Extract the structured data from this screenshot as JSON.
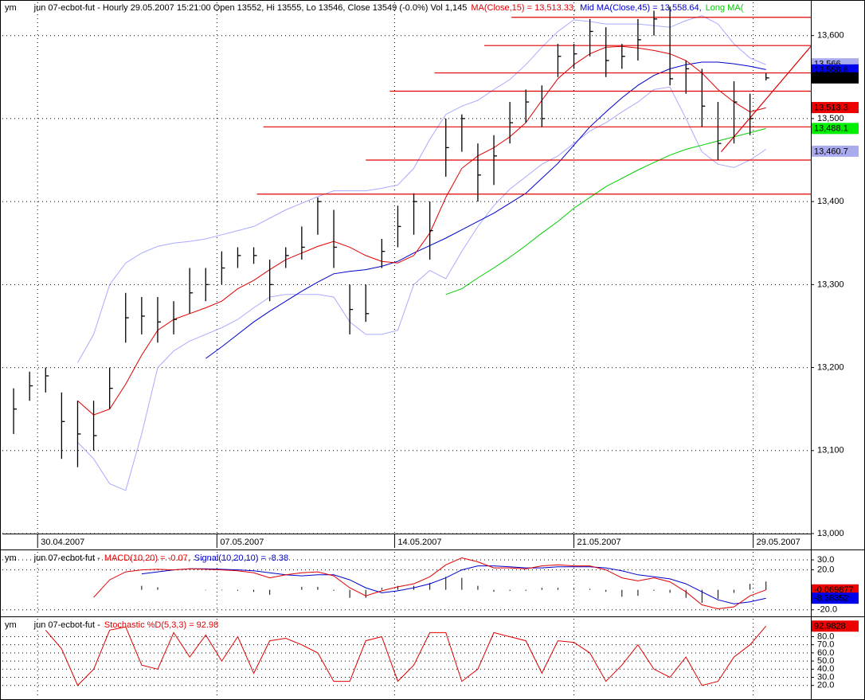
{
  "chart_data": [
    {
      "type": "ohlc",
      "title_parts": [
        {
          "text": "ym",
          "color": "#000000"
        },
        {
          "text": "jun 07-ecbot-fut - Hourly 29.05.2007 15:21:00 Open 13552, Hi 13555, Lo 13546, Close 13549 (-0.0%) Vol 1,145",
          "color": "#000000"
        },
        {
          "text": "MA(Close,15) = 13,513.33,",
          "color": "#e00000"
        },
        {
          "text": "Mid MA(Close,45) = 13,558.64,",
          "color": "#0000cc"
        },
        {
          "text": "Long MA(",
          "color": "#00cc00"
        }
      ],
      "xlim": [
        -0.7,
        49.8
      ],
      "xticks": [
        {
          "value": 1.5,
          "label": "30.04.2007"
        },
        {
          "value": 12.7,
          "label": "07.05.2007"
        },
        {
          "value": 23.8,
          "label": "14.05.2007"
        },
        {
          "value": 35,
          "label": "21.05.2007"
        },
        {
          "value": 46.2,
          "label": "29.05.2007"
        }
      ],
      "ylim": [
        13000,
        13640
      ],
      "yticks": [
        {
          "value": 13000,
          "label": "13,000"
        },
        {
          "value": 13100,
          "label": "13,100"
        },
        {
          "value": 13200,
          "label": "13,200"
        },
        {
          "value": 13300,
          "label": "13,300"
        },
        {
          "value": 13400,
          "label": "13,400"
        },
        {
          "value": 13500,
          "label": "13,500"
        },
        {
          "value": 13600,
          "label": "13,600"
        }
      ],
      "grid": true,
      "bar_color": "#000000",
      "high": [
        13175,
        13195,
        13200,
        13170,
        13160,
        13160,
        13200,
        13290,
        13285,
        13285,
        13280,
        13320,
        13320,
        13340,
        13345,
        13345,
        13330,
        13345,
        13370,
        13405,
        13390,
        13300,
        13300,
        13355,
        13395,
        13410,
        13400,
        13500,
        13505,
        13470,
        13480,
        13520,
        13535,
        13540,
        13590,
        13590,
        13620,
        13610,
        13590,
        13620,
        13630,
        13635,
        13570,
        13560,
        13520,
        13545,
        13530,
        13555
      ],
      "low": [
        13120,
        13160,
        13170,
        13090,
        13080,
        13100,
        13150,
        13230,
        13240,
        13230,
        13240,
        13265,
        13280,
        13300,
        13320,
        13325,
        13280,
        13320,
        13330,
        13360,
        13320,
        13240,
        13255,
        13320,
        13345,
        13360,
        13330,
        13430,
        13460,
        13400,
        13420,
        13470,
        13495,
        13490,
        13550,
        13560,
        13575,
        13550,
        13560,
        13570,
        13600,
        13540,
        13530,
        13490,
        13450,
        13470,
        13480,
        13546
      ],
      "close": [
        13150,
        13178,
        13190,
        13135,
        13120,
        13118,
        13175,
        13260,
        13262,
        13255,
        13258,
        13290,
        13300,
        13320,
        13335,
        13335,
        13300,
        13335,
        13345,
        13400,
        13345,
        13270,
        13265,
        13340,
        13370,
        13400,
        13365,
        13465,
        13500,
        13432,
        13455,
        13495,
        13520,
        13500,
        13575,
        13578,
        13605,
        13570,
        13575,
        13595,
        13620,
        13548,
        13560,
        13515,
        13470,
        13520,
        13500,
        13549
      ],
      "series": [
        {
          "color": "#aaaaff",
          "values": [
            null,
            null,
            null,
            null,
            13206,
            13240,
            13300,
            13326,
            13338,
            13346,
            13350,
            13352,
            13355,
            13360,
            13365,
            13370,
            13380,
            13390,
            13398,
            13406,
            13413,
            13413,
            13413,
            13416,
            13420,
            13440,
            13475,
            13505,
            13515,
            13522,
            13535,
            13547,
            13565,
            13586,
            13605,
            13619,
            13617,
            13614,
            13614,
            13614,
            13612,
            13610,
            13618,
            13624,
            13614,
            13590,
            13573,
            13565
          ]
        },
        {
          "color": "#aaaaff",
          "values": [
            null,
            null,
            null,
            null,
            13110,
            13090,
            13060,
            13052,
            13120,
            13200,
            13220,
            13232,
            13240,
            13248,
            13258,
            13272,
            13285,
            13288,
            13288,
            13288,
            13285,
            13255,
            13240,
            13240,
            13245,
            13300,
            13317,
            13307,
            13340,
            13370,
            13395,
            13415,
            13430,
            13445,
            13455,
            13470,
            13485,
            13495,
            13508,
            13520,
            13535,
            13538,
            13500,
            13460,
            13445,
            13441,
            13450,
            13463
          ]
        },
        {
          "color": "#00cc00",
          "values": [
            null,
            null,
            null,
            null,
            null,
            null,
            null,
            null,
            null,
            null,
            null,
            null,
            null,
            null,
            null,
            null,
            null,
            null,
            null,
            null,
            null,
            null,
            null,
            null,
            null,
            null,
            null,
            13288,
            13295,
            13308,
            13320,
            13333,
            13347,
            13362,
            13376,
            13392,
            13405,
            13418,
            13428,
            13438,
            13447,
            13456,
            13463,
            13468,
            13473,
            13478,
            13483,
            13488
          ]
        },
        {
          "color": "#0000cc",
          "values": [
            null,
            null,
            null,
            null,
            null,
            null,
            null,
            null,
            null,
            null,
            null,
            null,
            13211,
            13225,
            13240,
            13255,
            13268,
            13280,
            13292,
            13303,
            13313,
            13316,
            13318,
            13322,
            13328,
            13338,
            13347,
            13356,
            13366,
            13376,
            13386,
            13398,
            13410,
            13428,
            13446,
            13468,
            13490,
            13508,
            13525,
            13540,
            13552,
            13560,
            13565,
            13568,
            13568,
            13566,
            13563,
            13559
          ]
        },
        {
          "color": "#e00000",
          "values": [
            null,
            null,
            null,
            null,
            13160,
            13143,
            13150,
            13180,
            13215,
            13245,
            13258,
            13265,
            13272,
            13280,
            13295,
            13305,
            13318,
            13330,
            13338,
            13346,
            13352,
            13345,
            13335,
            13328,
            13326,
            13335,
            13362,
            13405,
            13440,
            13455,
            13465,
            13478,
            13495,
            13522,
            13548,
            13565,
            13578,
            13586,
            13587,
            13585,
            13582,
            13578,
            13570,
            13555,
            13535,
            13520,
            13508,
            13513
          ]
        }
      ],
      "level_color": "#e00000",
      "levels": [
        {
          "value": 13622,
          "start": 31.1
        },
        {
          "value": 13588,
          "start": 29.4
        },
        {
          "value": 13555,
          "start": 26.3
        },
        {
          "value": 13533,
          "start": 23.5
        },
        {
          "value": 13490,
          "start": 15.6
        },
        {
          "value": 13450,
          "start": 22
        },
        {
          "value": 13409,
          "start": 15.2
        }
      ],
      "trendline": {
        "color": "#e00000",
        "x": [
          44.2,
          49.8
        ],
        "values": [
          13460,
          13587
        ]
      },
      "markers": [
        {
          "value": 13566,
          "label": "13,566",
          "color": "#aaaaee",
          "text_color": "#000000"
        },
        {
          "value": 13558.6,
          "label": "13,558.6",
          "color": "#0000ee",
          "text_color": "#ffffff"
        },
        {
          "value": 13549,
          "label": "13,549",
          "color": "#000000",
          "text_color": "#ffffff"
        },
        {
          "value": 13513.3,
          "label": "13,513.3",
          "color": "#ee0000",
          "text_color": "#000000"
        },
        {
          "value": 13488.1,
          "label": "13,488.1",
          "color": "#00ee00",
          "text_color": "#000000"
        },
        {
          "value": 13460.7,
          "label": "13,460.7",
          "color": "#aaaaee",
          "text_color": "#000000"
        }
      ]
    },
    {
      "type": "line",
      "title_parts": [
        {
          "text": "ym",
          "color": "#000000"
        },
        {
          "text": "jun 07-ecbot-fut -",
          "color": "#000000"
        },
        {
          "text": "MACD(10,20) = -0.07,",
          "color": "#e00000"
        },
        {
          "text": "Signal(10,20,10) = -8.38",
          "color": "#0000cc"
        }
      ],
      "ylim": [
        -25,
        38
      ],
      "yticks": [
        {
          "value": 30,
          "label": "30.0"
        },
        {
          "value": 20,
          "label": "20.0"
        },
        {
          "value": -20,
          "label": "-20.0"
        }
      ],
      "grid": true,
      "histogram": {
        "color": "#000000",
        "values": [
          null,
          null,
          null,
          null,
          null,
          null,
          null,
          null,
          4,
          2.5,
          0,
          0,
          -0.5,
          -0.5,
          -1,
          -2,
          -5,
          0,
          3,
          3,
          -1,
          -8,
          -8,
          2,
          4,
          4,
          7,
          13,
          12,
          4,
          -2,
          -1,
          -1,
          2,
          2,
          1,
          1,
          -2,
          -7,
          -6,
          -1,
          -3,
          -8,
          -13,
          -9,
          -3,
          6,
          8.31
        ]
      },
      "series": [
        {
          "color": "#0000cc",
          "values": [
            null,
            null,
            null,
            null,
            null,
            null,
            null,
            null,
            16,
            18,
            20,
            21,
            21,
            20.5,
            20,
            19,
            17,
            15,
            14,
            15,
            15,
            10,
            2,
            -3,
            -1,
            2,
            6,
            12,
            20,
            24,
            24,
            23,
            22,
            22,
            23,
            23,
            23,
            22,
            19,
            15,
            13,
            11,
            6,
            -2,
            -10,
            -14,
            -12,
            -8.38
          ]
        },
        {
          "color": "#e00000",
          "values": [
            null,
            null,
            null,
            null,
            null,
            -7.5,
            10,
            18,
            20,
            20.5,
            20,
            21,
            20.5,
            20,
            19,
            17,
            12,
            15,
            17,
            18,
            14,
            2,
            -6,
            -1,
            3,
            6,
            13,
            25,
            32,
            28,
            22,
            22,
            21,
            24,
            25,
            24,
            24,
            20,
            12,
            9,
            12,
            8,
            -2,
            -15,
            -19,
            -17,
            -6,
            -0.07
          ]
        }
      ],
      "markers": [
        {
          "value": -0.069877,
          "label": "-0.069877",
          "color": "#ee0000",
          "text_color": "#000000"
        },
        {
          "value": -8.38352,
          "label": "-8.38352",
          "color": "#0000ee",
          "text_color": "#ffffff"
        }
      ]
    },
    {
      "type": "line",
      "title_parts": [
        {
          "text": "ym",
          "color": "#000000"
        },
        {
          "text": "jun 07-ecbot-fut -",
          "color": "#000000"
        },
        {
          "text": "Stochastic %D(5,3,3) = 92.98",
          "color": "#e00000"
        }
      ],
      "ylim": [
        6,
        102
      ],
      "yticks": [
        {
          "value": 80,
          "label": "80.0"
        },
        {
          "value": 70,
          "label": "70.0"
        },
        {
          "value": 60,
          "label": "60.0"
        },
        {
          "value": 50,
          "label": "50.0"
        },
        {
          "value": 40,
          "label": "40.0"
        },
        {
          "value": 30,
          "label": "30.0"
        },
        {
          "value": 20,
          "label": "20.0"
        }
      ],
      "grid": true,
      "series": [
        {
          "color": "#e00000",
          "values": [
            null,
            null,
            88,
            65,
            20,
            40,
            88,
            92,
            45,
            40,
            85,
            55,
            82,
            50,
            80,
            35,
            75,
            78,
            70,
            60,
            25,
            25,
            75,
            80,
            25,
            45,
            85,
            85,
            25,
            40,
            85,
            80,
            75,
            35,
            75,
            73,
            60,
            25,
            45,
            70,
            40,
            30,
            55,
            20,
            25,
            55,
            70,
            92.98
          ]
        }
      ],
      "markers": [
        {
          "value": 92.9828,
          "label": "92.9828",
          "color": "#ee0000",
          "text_color": "#000000"
        }
      ]
    }
  ]
}
